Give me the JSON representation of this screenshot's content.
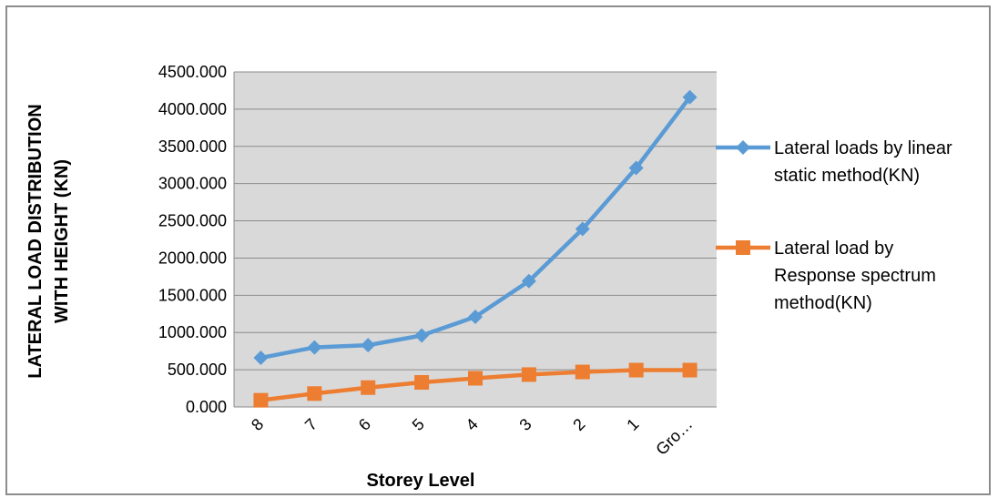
{
  "chart_data": {
    "type": "line",
    "categories": [
      "8",
      "7",
      "6",
      "5",
      "4",
      "3",
      "2",
      "1",
      "Gro…"
    ],
    "series": [
      {
        "name_lines": [
          "Lateral loads by linear",
          "static method(KN)"
        ],
        "name": "Lateral loads by linear static method(KN)",
        "color": "#5b9bd5",
        "marker": "diamond",
        "values": [
          660,
          800,
          830,
          960,
          1210,
          1690,
          2390,
          3210,
          4160
        ]
      },
      {
        "name_lines": [
          "Lateral load by",
          "Response spectrum",
          "method(KN)"
        ],
        "name": "Lateral load by Response spectrum method(KN)",
        "color": "#ed7d31",
        "marker": "square",
        "values": [
          90,
          180,
          260,
          330,
          385,
          435,
          470,
          495,
          495
        ]
      }
    ],
    "yticks": [
      "0.000",
      "500.000",
      "1000.000",
      "1500.000",
      "2000.000",
      "2500.000",
      "3000.000",
      "3500.000",
      "4000.000",
      "4500.000"
    ],
    "ylim": [
      0,
      4500
    ],
    "ylabel_lines": [
      "LATERAL LOAD DISTRIBUTION",
      "WITH HEIGHT (KN)"
    ],
    "xlabel": "Storey Level",
    "grid": true,
    "plot_background": "#d9d9d9",
    "legend_position": "right"
  }
}
